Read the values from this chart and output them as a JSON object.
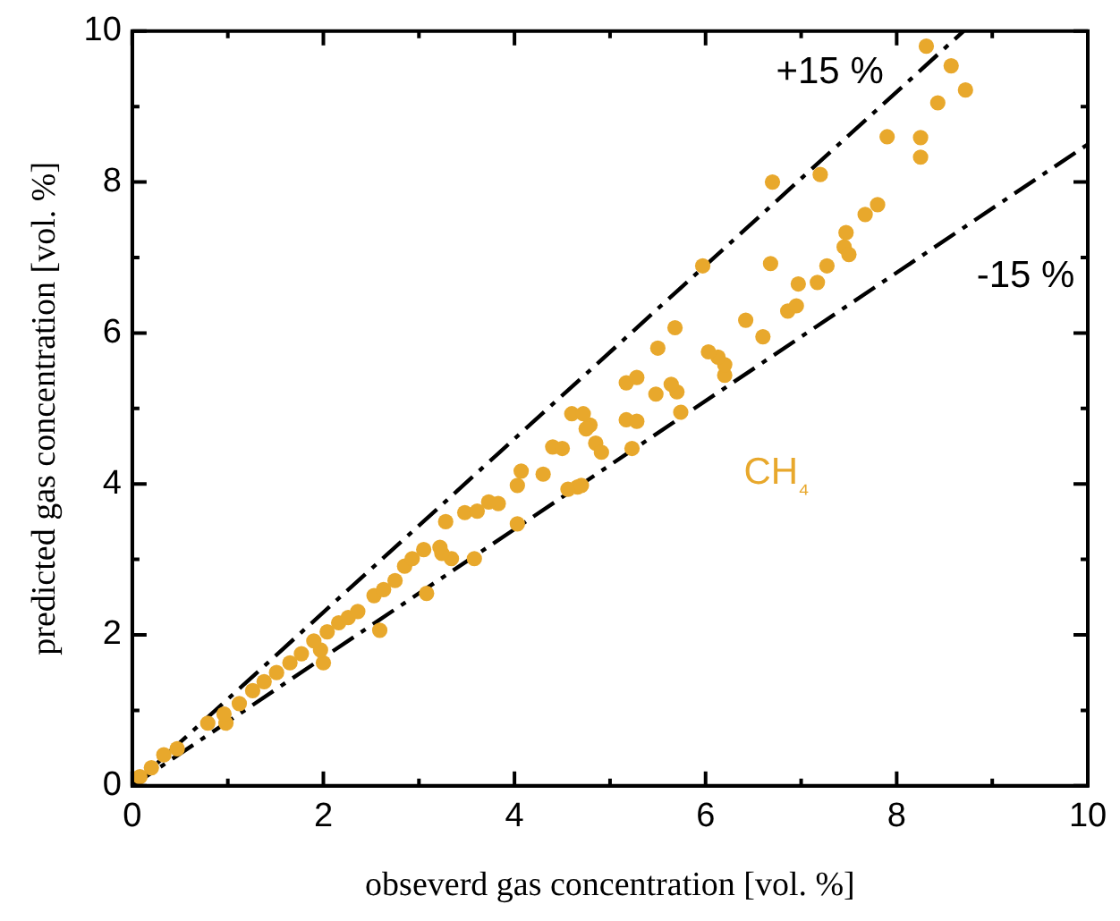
{
  "chart_data": {
    "type": "scatter",
    "xlabel": "obseverd gas concentration [vol. %]",
    "ylabel": "predicted gas concentration [vol. %]",
    "xlim": [
      0,
      10
    ],
    "ylim": [
      0,
      10
    ],
    "xticks": [
      0,
      {
        "value": 1,
        "label": null
      },
      2,
      {
        "value": 3,
        "label": null
      },
      4,
      {
        "value": 5,
        "label": null
      },
      6,
      {
        "value": 7,
        "label": null
      },
      8,
      {
        "value": 9,
        "label": null
      },
      10
    ],
    "yticks": [
      0,
      {
        "value": 1,
        "label": null
      },
      2,
      {
        "value": 3,
        "label": null
      },
      4,
      {
        "value": 5,
        "label": null
      },
      6,
      {
        "value": 7,
        "label": null
      },
      8,
      {
        "value": 9,
        "label": null
      },
      10
    ],
    "grid": false,
    "legend": false,
    "marker": "circle",
    "series": [
      {
        "name": "CH₄",
        "color": "#e8a82c",
        "x": [
          0.08,
          0.2,
          0.33,
          0.47,
          0.79,
          0.98,
          0.96,
          1.12,
          1.26,
          1.38,
          1.51,
          1.65,
          1.77,
          2.0,
          1.97,
          1.9,
          2.04,
          2.59,
          2.16,
          2.26,
          2.36,
          2.53,
          2.63,
          2.75,
          3.08,
          2.85,
          3.58,
          3.34,
          3.24,
          2.93,
          3.05,
          3.22,
          4.03,
          3.28,
          3.48,
          3.61,
          3.83,
          3.73,
          4.66,
          4.03,
          4.3,
          4.07,
          4.4,
          4.79,
          4.56,
          4.7,
          4.5,
          4.85,
          4.91,
          5.23,
          4.75,
          4.6,
          4.72,
          5.17,
          5.28,
          5.74,
          5.48,
          5.7,
          5.64,
          5.17,
          5.28,
          6.2,
          6.2,
          6.13,
          6.03,
          5.5,
          5.68,
          6.6,
          6.42,
          6.86,
          6.95,
          5.97,
          6.68,
          6.97,
          7.17,
          7.27,
          7.45,
          7.5,
          7.47,
          7.67,
          7.8,
          6.7,
          7.2,
          7.9,
          8.25,
          8.25,
          8.43,
          8.72,
          8.57,
          8.31
        ],
        "values": [
          0.12,
          0.24,
          0.41,
          0.49,
          0.83,
          0.83,
          0.95,
          1.09,
          1.26,
          1.38,
          1.5,
          1.63,
          1.75,
          1.63,
          1.8,
          1.92,
          2.04,
          2.06,
          2.16,
          2.23,
          2.31,
          2.52,
          2.6,
          2.72,
          2.55,
          2.91,
          3.01,
          3.01,
          3.08,
          3.01,
          3.13,
          3.16,
          3.47,
          3.5,
          3.62,
          3.64,
          3.74,
          3.76,
          3.96,
          3.98,
          4.13,
          4.17,
          4.49,
          4.78,
          3.93,
          3.98,
          4.47,
          4.54,
          4.42,
          4.47,
          4.73,
          4.93,
          4.93,
          4.85,
          4.83,
          4.95,
          5.19,
          5.22,
          5.32,
          5.34,
          5.41,
          5.44,
          5.58,
          5.68,
          5.75,
          5.8,
          6.07,
          5.95,
          6.17,
          6.29,
          6.36,
          6.89,
          6.92,
          6.65,
          6.67,
          6.89,
          7.14,
          7.04,
          7.33,
          7.57,
          7.7,
          8.0,
          8.1,
          8.6,
          8.59,
          8.33,
          9.05,
          9.22,
          9.54,
          9.8
        ]
      },
      {
        "type": "line",
        "color": "#000000",
        "line_style": "dashed",
        "marker": "none",
        "x": [
          0,
          8.7
        ],
        "values": [
          0,
          10
        ]
      },
      {
        "type": "line",
        "color": "#000000",
        "line_style": "dashed",
        "marker": "none",
        "x": [
          0,
          10
        ],
        "values": [
          0,
          8.5
        ]
      }
    ],
    "annotations": [
      "+15 %",
      "-15 %"
    ]
  }
}
